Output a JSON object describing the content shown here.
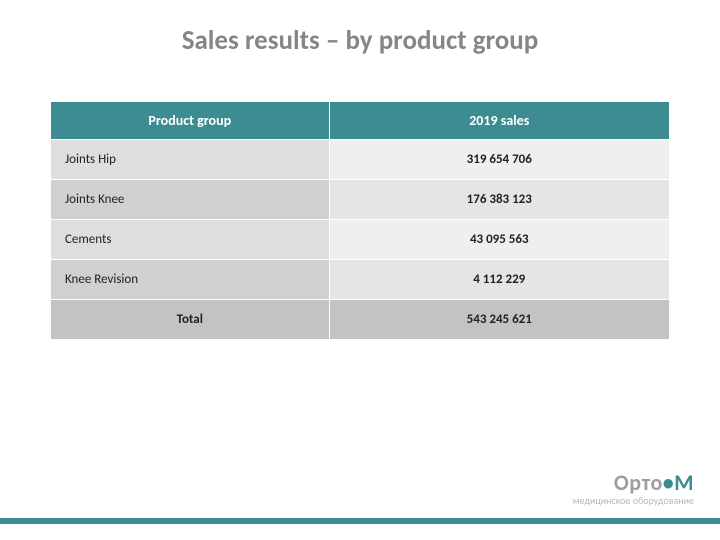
{
  "title": "Sales results –  by product group",
  "table": {
    "columns": [
      "Product group",
      "2019 sales"
    ],
    "rows": [
      {
        "product": "Joints Hip",
        "sales": "319 654 706"
      },
      {
        "product": "Joints Knee",
        "sales": "176 383 123"
      },
      {
        "product": "Cements",
        "sales": "43 095 563"
      },
      {
        "product": "Knee Revision",
        "sales": "4 112 229"
      }
    ],
    "total": {
      "label": "Total",
      "sales": "543 245 621"
    },
    "colors": {
      "header_bg": "#3c8c92",
      "header_text": "#ffffff",
      "row_a_product_bg": "#dedede",
      "row_a_sales_bg": "#efefef",
      "row_b_product_bg": "#d0d0d0",
      "row_b_sales_bg": "#e5e5e5",
      "total_bg": "#c3c3c3",
      "text": "#222222"
    },
    "column_widths_pct": [
      45,
      55
    ]
  },
  "footer": {
    "bar_color": "#3c8c92",
    "logo_text_1": "Орто",
    "logo_dot": "•",
    "logo_text_2": "М",
    "logo_sub": "медицинское оборудование",
    "logo_gray": "#9e9e9e",
    "logo_accent": "#3c8c92",
    "logo_sub_color": "#b8b8b8"
  }
}
